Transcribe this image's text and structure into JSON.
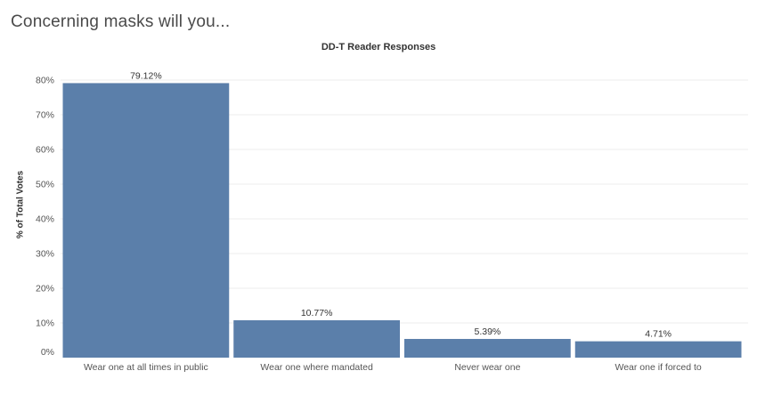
{
  "page": {
    "title": "Concerning masks will you..."
  },
  "chart_data": {
    "type": "bar",
    "title": "DD-T Reader Responses",
    "ylabel": "% of Total Votes",
    "xlabel": "",
    "categories": [
      "Wear one at all times in public",
      "Wear one where mandated",
      "Never wear one",
      "Wear one if forced to"
    ],
    "values": [
      79.12,
      10.77,
      5.39,
      4.71
    ],
    "data_labels": [
      "79.12%",
      "10.77%",
      "5.39%",
      "4.71%"
    ],
    "ylim": [
      0,
      80
    ],
    "yticks": [
      0,
      10,
      20,
      30,
      40,
      50,
      60,
      70,
      80
    ],
    "ytick_labels": [
      "0%",
      "10%",
      "20%",
      "30%",
      "40%",
      "50%",
      "60%",
      "70%",
      "80%"
    ],
    "grid": true,
    "bar_color": "#5b7faa",
    "grid_color": "#ececec"
  }
}
